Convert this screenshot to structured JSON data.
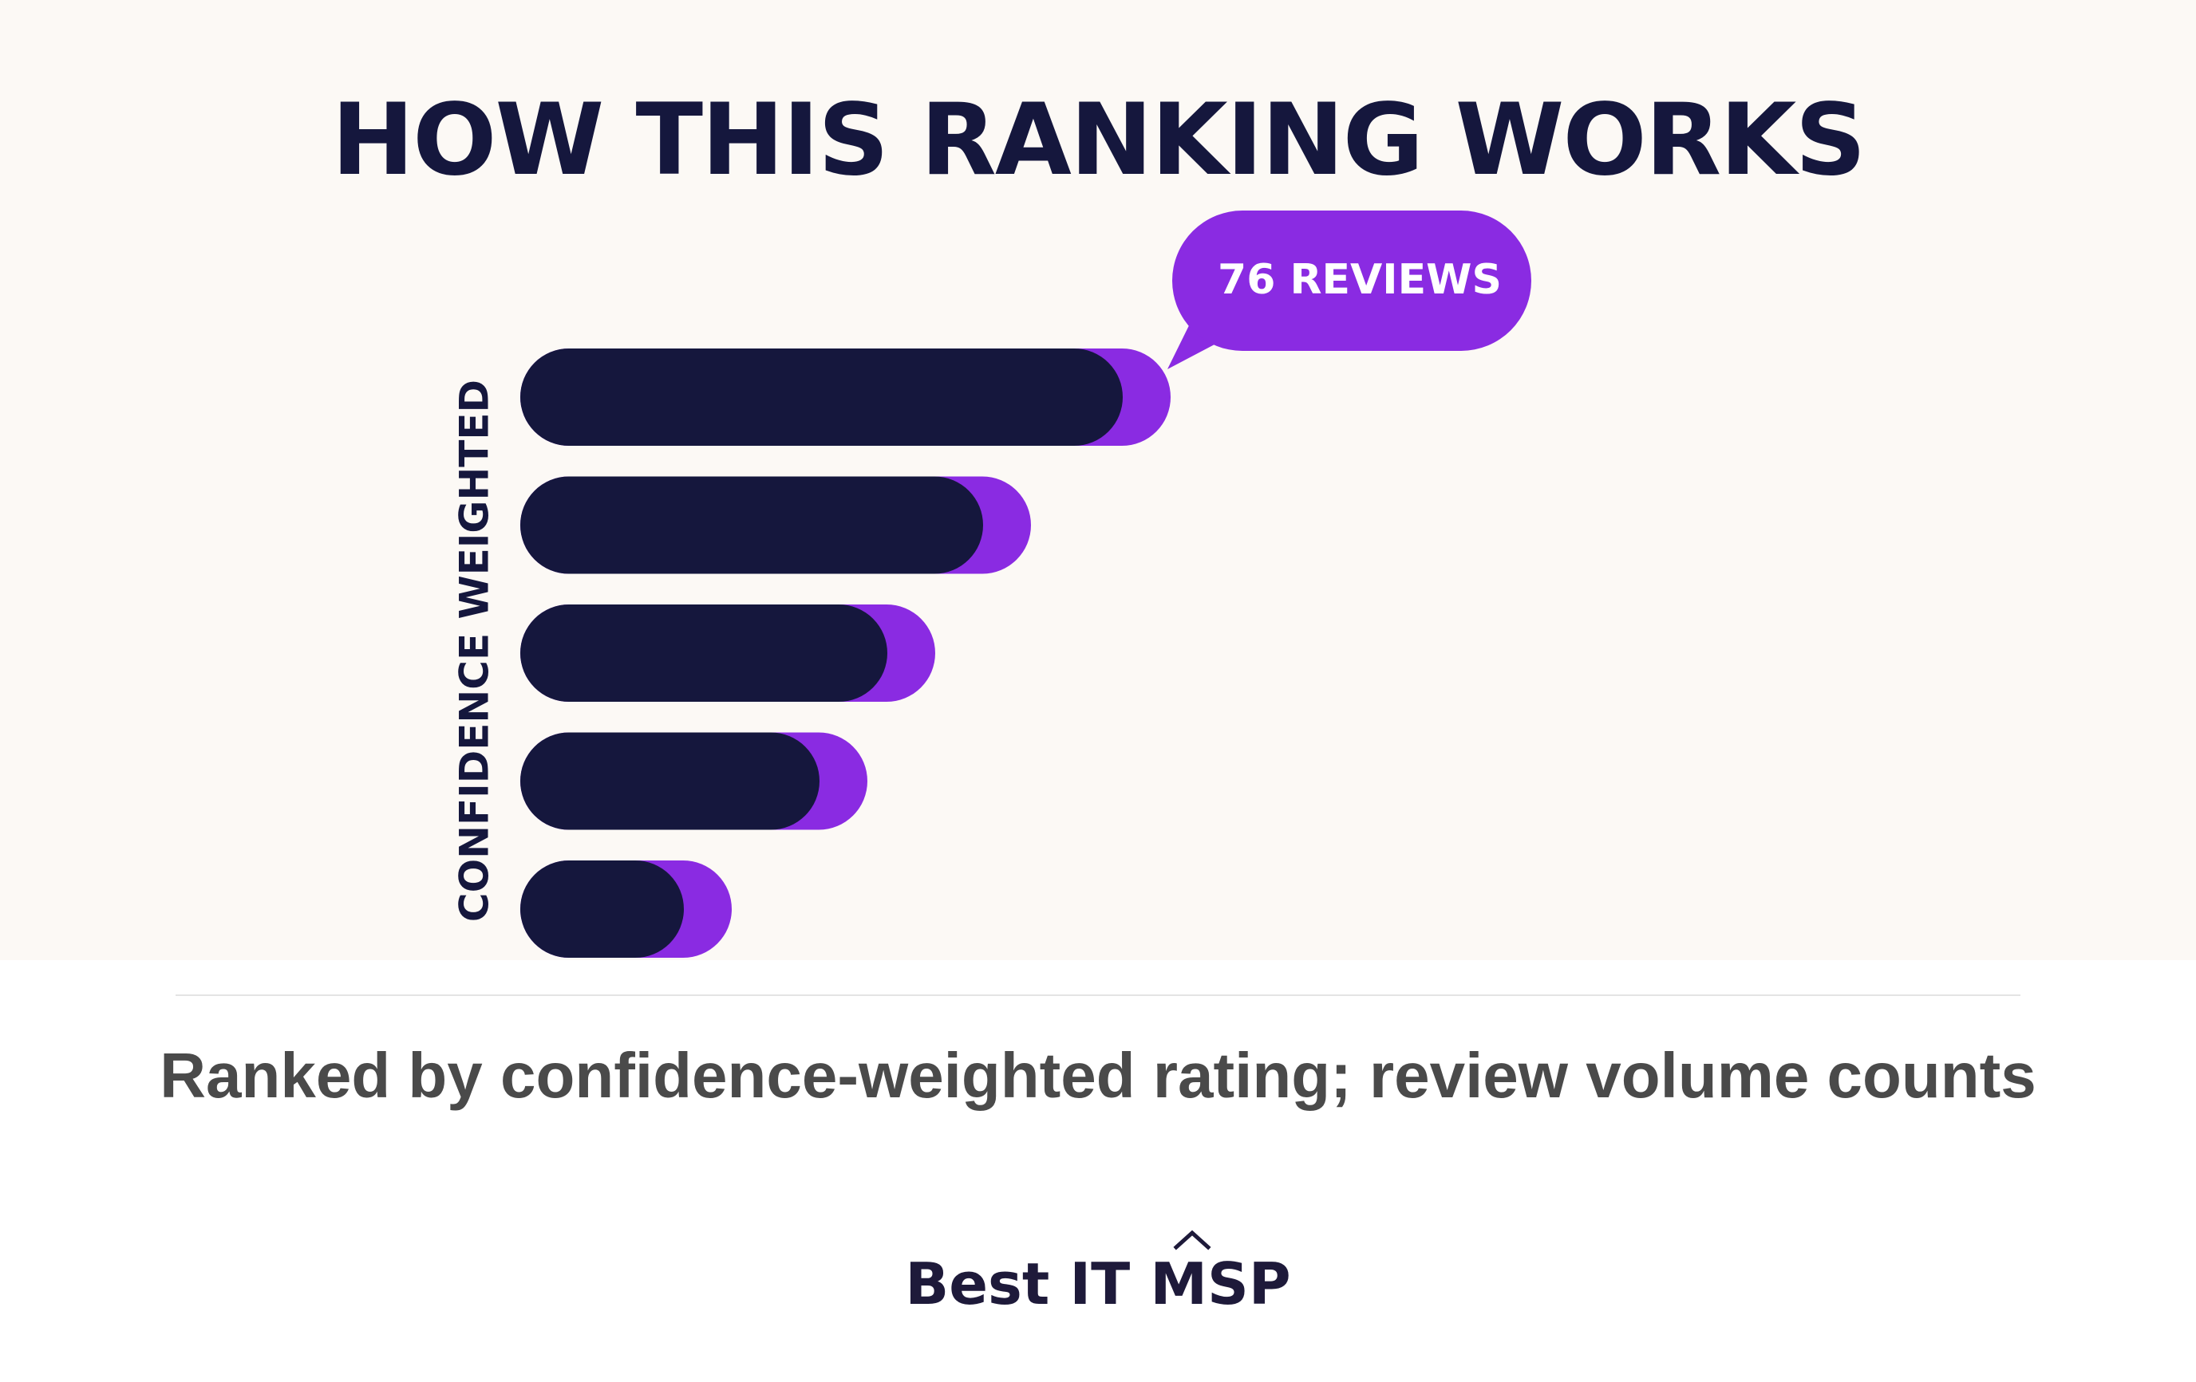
{
  "colors": {
    "background": "#fcf9f5",
    "bar_base": "#15173d",
    "bar_accent": "#8a2be2",
    "title": "#15173d",
    "callout_text": "#ffffff",
    "caption_text": "#4a4a4a",
    "brand_text": "#1e1a3a"
  },
  "chart_data": {
    "type": "bar",
    "orientation": "horizontal",
    "title": "HOW THIS RANKING WORKS",
    "ylabel": "CONFIDENCE WEIGHTED",
    "xlabel": "",
    "grid": false,
    "legend": "none",
    "series": [
      {
        "values": [
          755,
          580,
          460,
          375,
          205
        ]
      },
      {
        "values": [
          60,
          60,
          60,
          60,
          60
        ]
      }
    ],
    "annotations": [
      {
        "text": "76 REVIEWS",
        "bar_index": 0
      }
    ]
  },
  "caption": {
    "text": "Ranked by confidence-weighted rating; review volume counts"
  },
  "brand": {
    "name": "Best IT MSP",
    "icon": "caret-up-icon"
  }
}
